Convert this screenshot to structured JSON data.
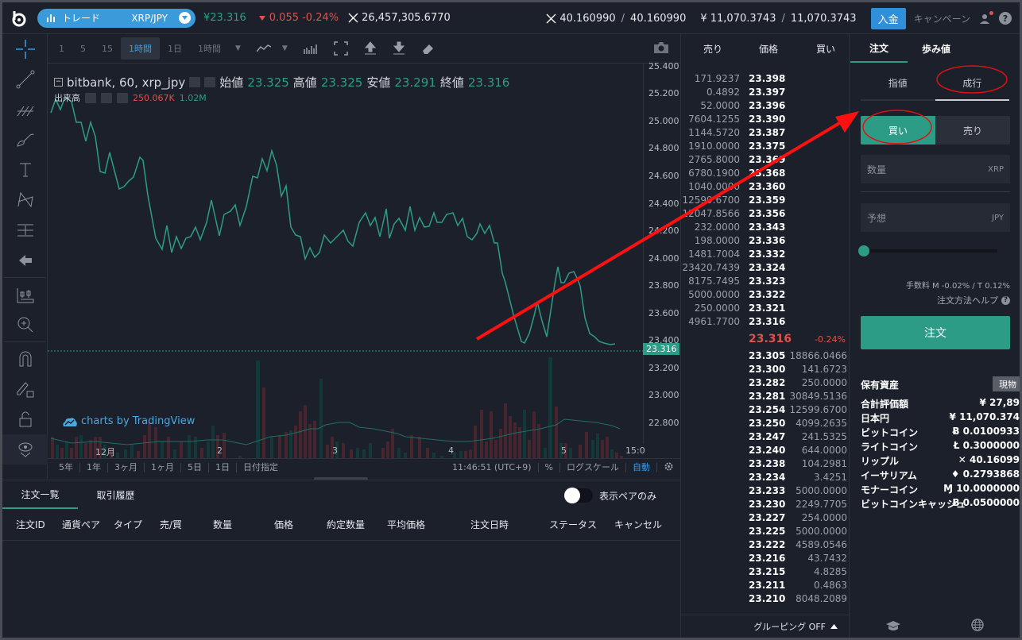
{
  "header": {
    "mode_label": "トレード",
    "pair": "XRP/JPY",
    "last_price": "¥23.316",
    "change": "0.055 -0.24%",
    "volume": "26,457,305.6770",
    "xrp_balance": "40.160990",
    "xrp_balance_total": "40.160990",
    "jpy_balance": "¥ 11,070.3743",
    "jpy_balance_total": "11,070.3743",
    "deposit_label": "入金",
    "campaign_label": "キャンペーン"
  },
  "toolbar": {
    "intervals": [
      "1",
      "5",
      "15",
      "1時間",
      "1日"
    ],
    "active_interval": "1時間",
    "interval_select": "1時間"
  },
  "chart": {
    "symbol": "bitbank, 60, xrp_jpy",
    "open_label": "始値",
    "open": "23.325",
    "high_label": "高値",
    "high": "23.325",
    "low_label": "安値",
    "low": "23.291",
    "close_label": "終値",
    "close": "23.316",
    "volume_label": "出来高",
    "volume_value": "250.067K",
    "volume_ma": "1.02M",
    "watermark": "charts by TradingView",
    "current_price_tag": "23.316",
    "y_ticks": [
      "25.400",
      "25.200",
      "25.000",
      "24.800",
      "24.600",
      "24.400",
      "24.200",
      "24.000",
      "23.800",
      "23.600",
      "23.400",
      "23.200",
      "23.000",
      "22.800"
    ],
    "x_ticks": [
      "12月",
      "2",
      "3",
      "4",
      "5",
      "15:0"
    ],
    "ranges": [
      "5年",
      "1年",
      "3ヶ月",
      "1ヶ月",
      "5日",
      "1日",
      "日付指定"
    ],
    "time": "11:46:51 (UTC+9)",
    "percent_label": "%",
    "log_label": "ログスケール",
    "auto_label": "自動"
  },
  "orders": {
    "tabs": [
      "注文一覧",
      "取引履歴"
    ],
    "toggle_label": "表示ペアのみ",
    "columns": [
      "注文ID",
      "通貨ペア",
      "タイプ",
      "売/買",
      "数量",
      "価格",
      "約定数量",
      "平均価格",
      "注文日時",
      "ステータス",
      "キャンセル"
    ]
  },
  "orderbook": {
    "headers": [
      "売り",
      "価格",
      "買い"
    ],
    "asks": [
      {
        "amount": "171.9237",
        "price": "23.398"
      },
      {
        "amount": "0.4892",
        "price": "23.397"
      },
      {
        "amount": "52.0000",
        "price": "23.396"
      },
      {
        "amount": "7604.1255",
        "price": "23.390"
      },
      {
        "amount": "1144.5720",
        "price": "23.387"
      },
      {
        "amount": "1910.0000",
        "price": "23.375"
      },
      {
        "amount": "2765.8000",
        "price": "23.369"
      },
      {
        "amount": "6780.1900",
        "price": "23.368"
      },
      {
        "amount": "1040.0000",
        "price": "23.360"
      },
      {
        "amount": "12599.6700",
        "price": "23.359"
      },
      {
        "amount": "12047.8566",
        "price": "23.356"
      },
      {
        "amount": "232.0000",
        "price": "23.343"
      },
      {
        "amount": "198.0000",
        "price": "23.336"
      },
      {
        "amount": "1481.7004",
        "price": "23.332"
      },
      {
        "amount": "23420.7439",
        "price": "23.324"
      },
      {
        "amount": "8175.7495",
        "price": "23.323"
      },
      {
        "amount": "5000.0000",
        "price": "23.322"
      },
      {
        "amount": "250.0000",
        "price": "23.321"
      },
      {
        "amount": "4961.7700",
        "price": "23.316"
      }
    ],
    "last_price": "23.316",
    "last_change": "-0.24%",
    "bids": [
      {
        "price": "23.305",
        "amount": "18866.0466"
      },
      {
        "price": "23.300",
        "amount": "141.6723"
      },
      {
        "price": "23.282",
        "amount": "250.0000"
      },
      {
        "price": "23.281",
        "amount": "30849.5136"
      },
      {
        "price": "23.254",
        "amount": "12599.6700"
      },
      {
        "price": "23.250",
        "amount": "4099.2635"
      },
      {
        "price": "23.247",
        "amount": "241.5325"
      },
      {
        "price": "23.240",
        "amount": "644.0000"
      },
      {
        "price": "23.238",
        "amount": "104.2981"
      },
      {
        "price": "23.234",
        "amount": "3.4251"
      },
      {
        "price": "23.233",
        "amount": "5000.0000"
      },
      {
        "price": "23.230",
        "amount": "2249.7705"
      },
      {
        "price": "23.227",
        "amount": "254.0000"
      },
      {
        "price": "23.225",
        "amount": "5000.0000"
      },
      {
        "price": "23.222",
        "amount": "4589.0546"
      },
      {
        "price": "23.216",
        "amount": "43.7432"
      },
      {
        "price": "23.215",
        "amount": "4.8285"
      },
      {
        "price": "23.211",
        "amount": "0.4863"
      },
      {
        "price": "23.210",
        "amount": "8048.2089"
      }
    ],
    "grouping_label": "グルーピング OFF"
  },
  "order_panel": {
    "tabs": [
      "注文",
      "歩み値"
    ],
    "order_types": [
      "指値",
      "成行"
    ],
    "active_order_type": "成行",
    "buy_label": "買い",
    "sell_label": "売り",
    "qty_placeholder": "数量",
    "qty_unit": "XRP",
    "est_placeholder": "予想",
    "est_unit": "JPY",
    "fee_text": "手数料 M -0.02% / T 0.12%",
    "help_text": "注文方法ヘルプ",
    "submit_label": "注文",
    "assets_title": "保有資産",
    "spot_label": "現物",
    "assets": [
      {
        "name": "合計評価額",
        "value": "¥ 27,89"
      },
      {
        "name": "日本円",
        "value": "¥ 11,070.374"
      },
      {
        "name": "ビットコイン",
        "value": "Ƀ 0.0100933"
      },
      {
        "name": "ライトコイン",
        "value": "Ł 0.3000000"
      },
      {
        "name": "リップル",
        "value": "✕ 40.16099"
      },
      {
        "name": "イーサリアム",
        "value": "♦ 0.2793868"
      },
      {
        "name": "モナーコイン",
        "value": "Ɱ 10.0000000"
      },
      {
        "name": "ビットコインキャッシュ",
        "value": "Ƀ 0.0500000"
      }
    ]
  },
  "colors": {
    "accent": "#2d9c86",
    "up": "#2f9c84",
    "down": "#e0514c",
    "blue": "#3b9ad9",
    "background": "#1b202b",
    "annotation": "#ff0000"
  }
}
